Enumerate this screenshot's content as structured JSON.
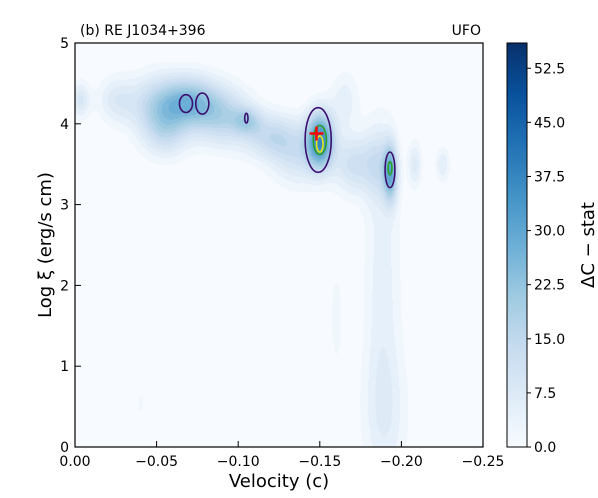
{
  "chart_data": {
    "type": "heatmap",
    "panel_label": "(b) RE J1034+396",
    "annotation_right": "UFO",
    "xlabel": "Velocity (c)",
    "ylabel": "Log ξ (erg/s cm)",
    "xlim": [
      0.0,
      -0.25
    ],
    "ylim": [
      0,
      5
    ],
    "x_ticks": [
      "0.00",
      "−0.05",
      "−0.10",
      "−0.15",
      "−0.20",
      "−0.25"
    ],
    "x_tick_values": [
      0.0,
      -0.05,
      -0.1,
      -0.15,
      -0.2,
      -0.25
    ],
    "y_ticks": [
      "0",
      "1",
      "2",
      "3",
      "4",
      "5"
    ],
    "y_tick_values": [
      0,
      1,
      2,
      3,
      4,
      5
    ],
    "colorbar": {
      "label": "ΔC − stat",
      "ticks": [
        "0.0",
        "7.5",
        "15.0",
        "22.5",
        "30.0",
        "37.5",
        "45.0",
        "52.5"
      ],
      "tick_values": [
        0.0,
        7.5,
        15.0,
        22.5,
        30.0,
        37.5,
        45.0,
        52.5
      ],
      "range": [
        0,
        56
      ],
      "colormap": "Blues"
    },
    "blobs": [
      {
        "v": -0.003,
        "logxi": 4.3,
        "sv": 0.004,
        "sx": 0.15,
        "amp": 10
      },
      {
        "v": -0.025,
        "logxi": 4.3,
        "sv": 0.008,
        "sx": 0.2,
        "amp": 8
      },
      {
        "v": -0.05,
        "logxi": 4.25,
        "sv": 0.012,
        "sx": 0.25,
        "amp": 14
      },
      {
        "v": -0.07,
        "logxi": 4.28,
        "sv": 0.012,
        "sx": 0.22,
        "amp": 22
      },
      {
        "v": -0.055,
        "logxi": 3.9,
        "sv": 0.01,
        "sx": 0.22,
        "amp": 12
      },
      {
        "v": -0.09,
        "logxi": 4.1,
        "sv": 0.012,
        "sx": 0.25,
        "amp": 16
      },
      {
        "v": -0.105,
        "logxi": 4.05,
        "sv": 0.006,
        "sx": 0.12,
        "amp": 12
      },
      {
        "v": -0.12,
        "logxi": 3.85,
        "sv": 0.012,
        "sx": 0.2,
        "amp": 14
      },
      {
        "v": -0.135,
        "logxi": 3.6,
        "sv": 0.01,
        "sx": 0.25,
        "amp": 10
      },
      {
        "v": -0.15,
        "logxi": 3.8,
        "sv": 0.006,
        "sx": 0.25,
        "amp": 36
      },
      {
        "v": -0.17,
        "logxi": 3.5,
        "sv": 0.008,
        "sx": 0.25,
        "amp": 12
      },
      {
        "v": -0.185,
        "logxi": 3.5,
        "sv": 0.006,
        "sx": 0.3,
        "amp": 10
      },
      {
        "v": -0.193,
        "logxi": 3.4,
        "sv": 0.003,
        "sx": 0.25,
        "amp": 26
      },
      {
        "v": -0.165,
        "logxi": 4.3,
        "sv": 0.006,
        "sx": 0.25,
        "amp": 6
      },
      {
        "v": -0.225,
        "logxi": 3.5,
        "sv": 0.003,
        "sx": 0.15,
        "amp": 7
      },
      {
        "v": -0.208,
        "logxi": 3.5,
        "sv": 0.003,
        "sx": 0.2,
        "amp": 8
      },
      {
        "v": -0.188,
        "logxi": 2.0,
        "sv": 0.008,
        "sx": 1.4,
        "amp": 6
      },
      {
        "v": -0.19,
        "logxi": 0.4,
        "sv": 0.01,
        "sx": 0.6,
        "amp": 5
      },
      {
        "v": -0.16,
        "logxi": 1.6,
        "sv": 0.004,
        "sx": 0.6,
        "amp": 3
      },
      {
        "v": -0.04,
        "logxi": 0.55,
        "sv": 0.002,
        "sx": 0.12,
        "amp": 3
      }
    ],
    "contours": [
      {
        "v": -0.068,
        "logxi": 4.25,
        "rv": 0.004,
        "rx": 0.11,
        "color": "#3b0f70"
      },
      {
        "v": -0.078,
        "logxi": 4.25,
        "rv": 0.004,
        "rx": 0.13,
        "color": "#3b0f70"
      },
      {
        "v": -0.105,
        "logxi": 4.07,
        "rv": 0.001,
        "rx": 0.06,
        "color": "#3b0f70"
      },
      {
        "v": -0.149,
        "logxi": 3.8,
        "rv": 0.008,
        "rx": 0.4,
        "color": "#3b0f70"
      },
      {
        "v": -0.15,
        "logxi": 3.8,
        "rv": 0.004,
        "rx": 0.18,
        "color": "#2ca02c"
      },
      {
        "v": -0.15,
        "logxi": 3.75,
        "rv": 0.002,
        "rx": 0.1,
        "color": "#e6e61a"
      },
      {
        "v": -0.193,
        "logxi": 3.43,
        "rv": 0.003,
        "rx": 0.22,
        "color": "#3b0f70"
      },
      {
        "v": -0.193,
        "logxi": 3.45,
        "rv": 0.0012,
        "rx": 0.08,
        "color": "#2ca02c"
      }
    ],
    "best_fit": {
      "v": -0.148,
      "logxi": 3.88,
      "color": "#ff0000"
    }
  }
}
